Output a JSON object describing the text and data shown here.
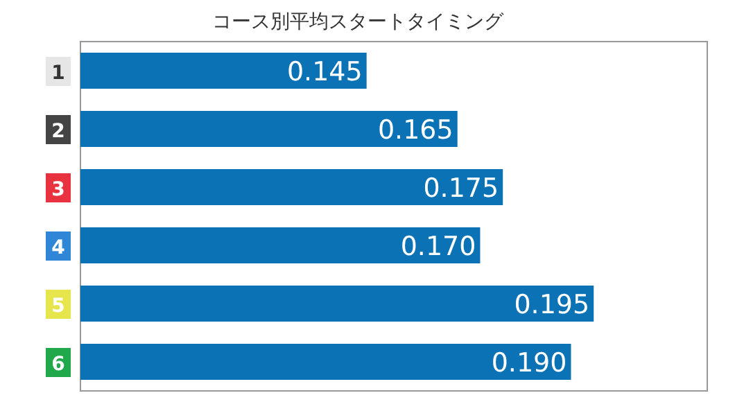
{
  "chart_data": {
    "type": "bar",
    "orientation": "horizontal",
    "title": "コース別平均スタートタイミング",
    "categories": [
      "1",
      "2",
      "3",
      "4",
      "5",
      "6"
    ],
    "values": [
      0.145,
      0.165,
      0.175,
      0.17,
      0.195,
      0.19
    ],
    "value_labels": [
      "0.145",
      "0.165",
      "0.175",
      "0.170",
      "0.195",
      "0.190"
    ],
    "color": "#0b72b5",
    "xlim": [
      0.082,
      0.22
    ]
  }
}
